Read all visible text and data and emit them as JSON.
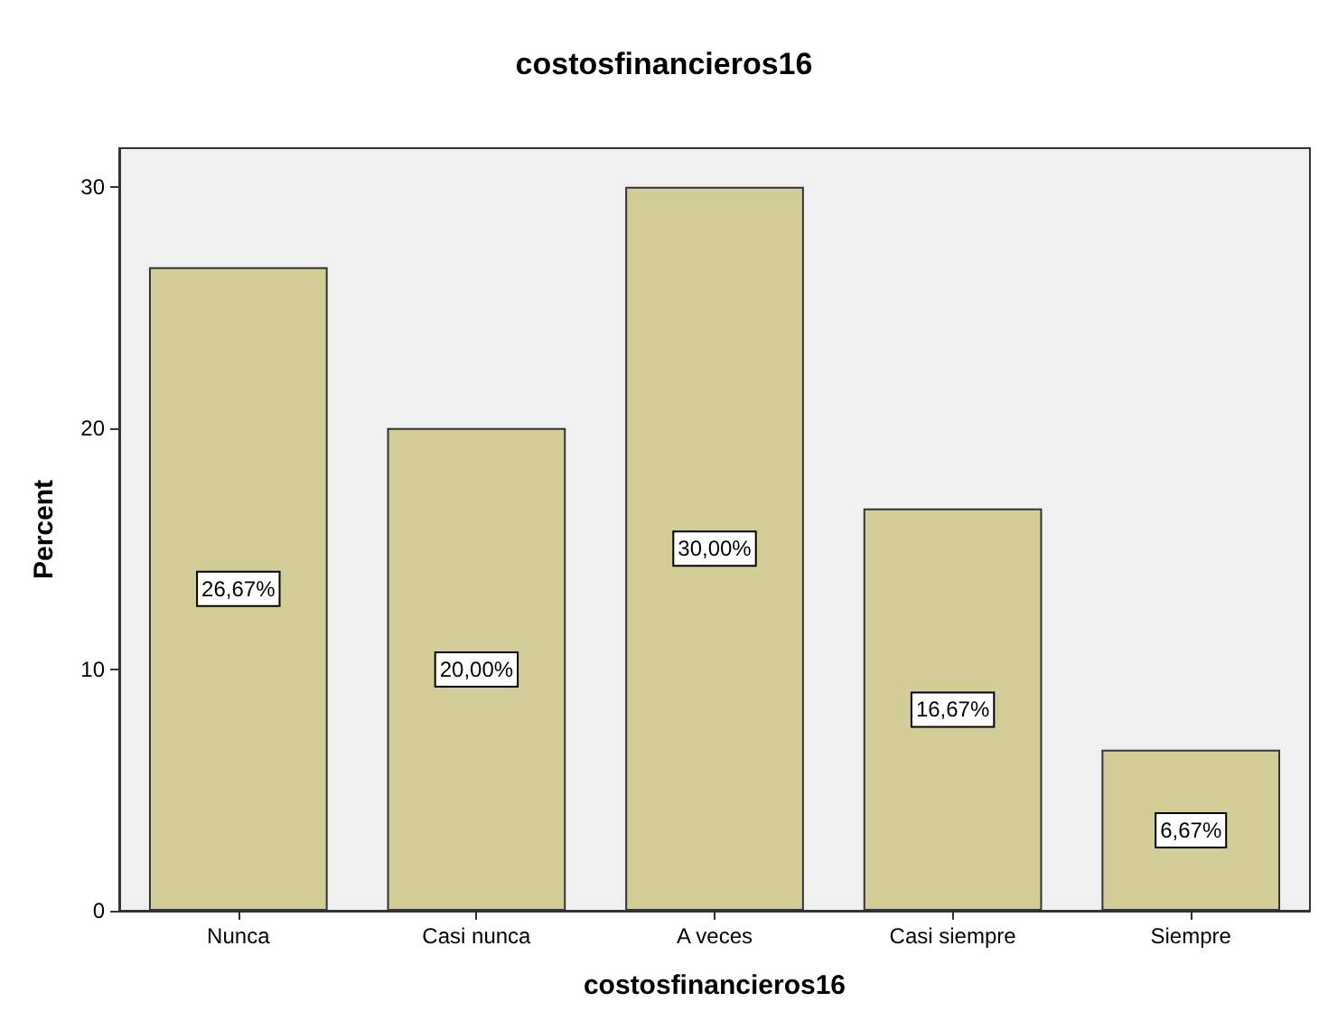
{
  "chart_data": {
    "type": "bar",
    "title": "costosfinancieros16",
    "xlabel": "costosfinancieros16",
    "ylabel": "Percent",
    "categories": [
      "Nunca",
      "Casi nunca",
      "A veces",
      "Casi siempre",
      "Siempre"
    ],
    "values": [
      26.67,
      20,
      30,
      16.67,
      6.67
    ],
    "value_labels": [
      "26,67%",
      "20,00%",
      "30,00%",
      "16,67%",
      "6,67%"
    ],
    "color": "#d3ce97",
    "ylim": [
      0,
      31.6
    ],
    "yticks": [
      0,
      10,
      20,
      30
    ],
    "grid": false
  }
}
